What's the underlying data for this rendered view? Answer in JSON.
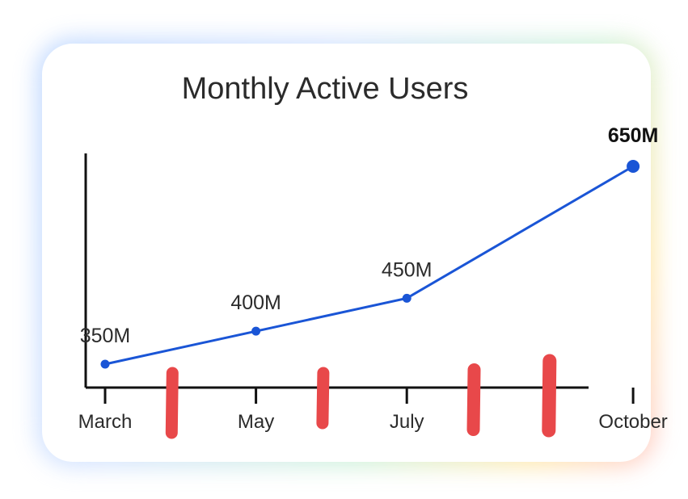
{
  "chart_data": {
    "type": "line",
    "title": "Monthly Active Users",
    "xlabel": "",
    "ylabel": "",
    "categories": [
      "March",
      "May",
      "July",
      "October"
    ],
    "x": [
      0,
      2,
      4,
      7
    ],
    "series": [
      {
        "name": "Monthly Active Users",
        "values": [
          350,
          400,
          450,
          650
        ],
        "labels": [
          "350M",
          "400M",
          "450M",
          "650M"
        ],
        "emphasized_index": 3
      }
    ],
    "ylim": [
      300,
      650
    ],
    "grid": false,
    "legend": "none",
    "line_color": "#1a55d6",
    "axis_color": "#111111",
    "marker_color": "#e8484a"
  }
}
